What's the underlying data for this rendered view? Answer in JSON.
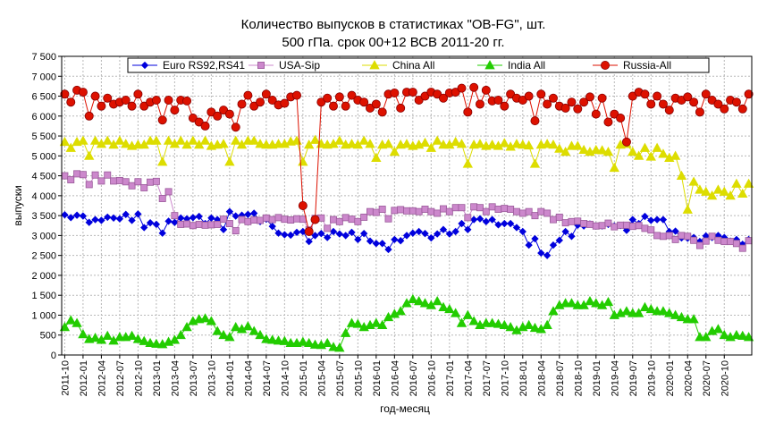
{
  "chart_data": {
    "type": "line",
    "title": "Количество выпусков в статистиках \"OB-FG\", шт.",
    "subtitle": "500 гПа. срок 00+12 ВСВ 2011-20 гг.",
    "xlabel": "год-месяц",
    "ylabel": "выпуски",
    "ylim": [
      0,
      7500
    ],
    "yticks": [
      "0",
      "500",
      "1 000",
      "1 500",
      "2 000",
      "2 500",
      "3 000",
      "3 500",
      "4 000",
      "4 500",
      "5 000",
      "5 500",
      "6 000",
      "6 500",
      "7 000",
      "7 500"
    ],
    "x_start": "2011-10",
    "x_count": 113,
    "xtick_labels": [
      "2011-10",
      "2012-01",
      "2012-04",
      "2012-07",
      "2012-10",
      "2013-01",
      "2013-04",
      "2013-07",
      "2013-10",
      "2014-01",
      "2014-04",
      "2014-07",
      "2014-10",
      "2015-01",
      "2015-04",
      "2015-07",
      "2015-10",
      "2016-01",
      "2016-04",
      "2016-07",
      "2016-10",
      "2017-01",
      "2017-04",
      "2017-07",
      "2017-10",
      "2018-01",
      "2018-04",
      "2018-07",
      "2018-10",
      "2019-01",
      "2019-04",
      "2019-07",
      "2019-10",
      "2020-01",
      "2020-04",
      "2020-07",
      "2020-10"
    ],
    "grid": true,
    "legend": "top",
    "series": [
      {
        "name": "Euro RS92,RS41",
        "color": "#0000dd",
        "marker": "diamond",
        "values": [
          3520,
          3450,
          3510,
          3490,
          3330,
          3400,
          3380,
          3460,
          3440,
          3420,
          3530,
          3380,
          3540,
          3200,
          3320,
          3280,
          3060,
          3360,
          3330,
          3440,
          3420,
          3450,
          3480,
          3300,
          3440,
          3400,
          3150,
          3600,
          3490,
          3510,
          3530,
          3560,
          3350,
          3410,
          3230,
          3060,
          3020,
          3010,
          3080,
          3100,
          2850,
          3000,
          3050,
          2950,
          3100,
          3040,
          3000,
          3080,
          2900,
          3050,
          2860,
          2800,
          2800,
          2650,
          2900,
          2870,
          3000,
          3060,
          3100,
          3050,
          2940,
          3040,
          3150,
          3040,
          3100,
          3300,
          3150,
          3400,
          3420,
          3350,
          3400,
          3270,
          3300,
          3300,
          3200,
          3100,
          2760,
          2920,
          2560,
          2500,
          2760,
          2880,
          3100,
          2980,
          3260,
          3240,
          3290,
          3240,
          3240,
          3280,
          3240,
          3250,
          3130,
          3400,
          3300,
          3480,
          3380,
          3400,
          3400,
          3100,
          3110,
          2940,
          2930,
          2950,
          2850,
          2990,
          2950,
          3000,
          2950,
          2860,
          2900,
          2780,
          2900
        ]
      },
      {
        "name": "USA-Sip",
        "color": "#cc88cc",
        "marker": "square",
        "values": [
          4500,
          4400,
          4550,
          4530,
          4280,
          4520,
          4370,
          4520,
          4370,
          4380,
          4350,
          4250,
          4350,
          4200,
          4340,
          4360,
          3930,
          4100,
          3500,
          3280,
          3290,
          3250,
          3280,
          3260,
          3270,
          3280,
          3410,
          3300,
          3120,
          3400,
          3350,
          3390,
          3380,
          3440,
          3400,
          3450,
          3410,
          3390,
          3420,
          3410,
          3140,
          3430,
          3440,
          3180,
          3400,
          3350,
          3450,
          3410,
          3350,
          3460,
          3600,
          3580,
          3660,
          3420,
          3630,
          3650,
          3620,
          3620,
          3600,
          3660,
          3600,
          3560,
          3670,
          3600,
          3700,
          3700,
          3450,
          3720,
          3700,
          3600,
          3720,
          3660,
          3680,
          3660,
          3600,
          3560,
          3600,
          3500,
          3600,
          3560,
          3400,
          3460,
          3320,
          3350,
          3360,
          3300,
          3280,
          3240,
          3250,
          3310,
          3220,
          3260,
          3260,
          3230,
          3250,
          3180,
          3140,
          3000,
          2980,
          3000,
          2900,
          3000,
          2980,
          2880,
          2750,
          2860,
          2980,
          2880,
          2850,
          2850,
          2800,
          2680,
          2870
        ]
      },
      {
        "name": "China All",
        "color": "#dddd00",
        "marker": "triangle",
        "values": [
          5350,
          5200,
          5350,
          5380,
          5000,
          5380,
          5300,
          5380,
          5280,
          5380,
          5300,
          5250,
          5280,
          5280,
          5380,
          5380,
          4850,
          5380,
          5300,
          5380,
          5280,
          5380,
          5280,
          5380,
          5250,
          5280,
          5300,
          4850,
          5380,
          5280,
          5380,
          5380,
          5300,
          5280,
          5280,
          5300,
          5300,
          5360,
          5380,
          4850,
          5280,
          5400,
          5300,
          5280,
          5300,
          5380,
          5280,
          5300,
          5280,
          5380,
          5300,
          4950,
          5280,
          5300,
          5100,
          5280,
          5300,
          5250,
          5280,
          5330,
          5200,
          5380,
          5280,
          5280,
          5350,
          5300,
          4800,
          5280,
          5300,
          5250,
          5280,
          5250,
          5320,
          5230,
          5300,
          5280,
          5260,
          4800,
          5280,
          5300,
          5280,
          5180,
          5100,
          5250,
          5250,
          5150,
          5100,
          5150,
          5140,
          5100,
          4700,
          5280,
          5300,
          5100,
          5000,
          5200,
          4980,
          5200,
          5050,
          4950,
          5000,
          4500,
          3650,
          4350,
          4150,
          4100,
          4000,
          4150,
          4100,
          4000,
          4300,
          4050,
          4300
        ]
      },
      {
        "name": "India All",
        "color": "#22cc00",
        "marker": "triangle",
        "values": [
          700,
          870,
          800,
          520,
          400,
          430,
          380,
          480,
          360,
          450,
          450,
          480,
          400,
          350,
          300,
          280,
          270,
          330,
          380,
          500,
          700,
          850,
          900,
          920,
          850,
          600,
          500,
          450,
          700,
          650,
          720,
          600,
          500,
          400,
          380,
          360,
          350,
          300,
          300,
          330,
          300,
          260,
          250,
          300,
          200,
          180,
          550,
          800,
          780,
          700,
          750,
          800,
          750,
          950,
          1030,
          1100,
          1300,
          1400,
          1350,
          1300,
          1250,
          1350,
          1200,
          1150,
          1050,
          800,
          1000,
          850,
          750,
          800,
          800,
          780,
          750,
          700,
          620,
          700,
          750,
          680,
          650,
          750,
          1100,
          1250,
          1300,
          1300,
          1250,
          1250,
          1350,
          1300,
          1250,
          1330,
          1000,
          1050,
          1100,
          1050,
          1050,
          1200,
          1150,
          1100,
          1100,
          1050,
          1000,
          950,
          900,
          900,
          450,
          450,
          600,
          650,
          500,
          450,
          500,
          480,
          450
        ]
      },
      {
        "name": "Russia-All",
        "color": "#dd1100",
        "marker": "circle",
        "values": [
          6550,
          6350,
          6650,
          6600,
          6000,
          6500,
          6250,
          6450,
          6300,
          6350,
          6400,
          6250,
          6550,
          6250,
          6350,
          6400,
          5900,
          6400,
          6150,
          6400,
          6380,
          5950,
          5850,
          5750,
          6100,
          6000,
          6150,
          6050,
          5720,
          6300,
          6520,
          6250,
          6350,
          6550,
          6400,
          6280,
          6320,
          6480,
          6520,
          3750,
          3100,
          3400,
          6350,
          6450,
          6250,
          6480,
          6250,
          6520,
          6400,
          6350,
          6200,
          6300,
          6100,
          6550,
          6580,
          6200,
          6600,
          6600,
          6400,
          6500,
          6600,
          6550,
          6450,
          6580,
          6600,
          6700,
          6100,
          6720,
          6300,
          6650,
          6380,
          6400,
          6250,
          6550,
          6450,
          6400,
          6500,
          5880,
          6550,
          6300,
          6450,
          6250,
          6200,
          6350,
          6180,
          6350,
          6480,
          6050,
          6450,
          5850,
          6050,
          5950,
          5350,
          6500,
          6600,
          6550,
          6300,
          6500,
          6300,
          6150,
          6450,
          6400,
          6480,
          6350,
          6100,
          6550,
          6400,
          6300,
          6180,
          6400,
          6350,
          6180,
          6550
        ]
      }
    ]
  }
}
